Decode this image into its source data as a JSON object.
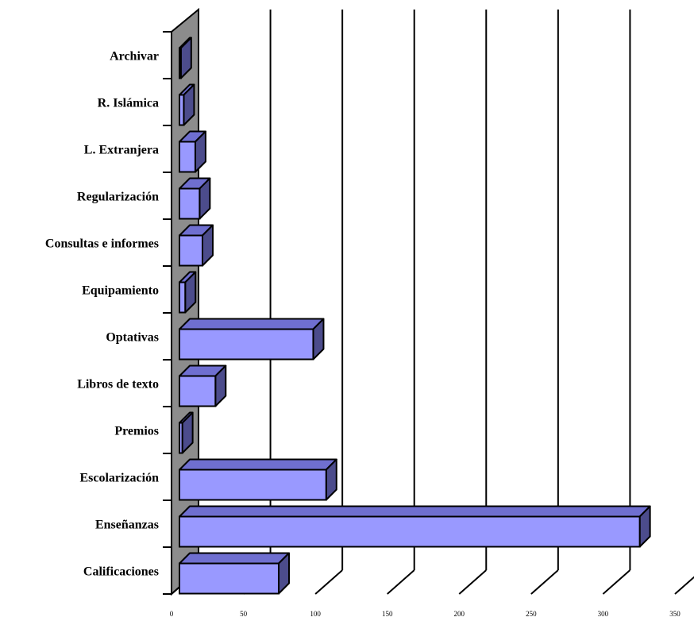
{
  "chart_data": {
    "type": "bar",
    "orientation": "horizontal",
    "style": "3d",
    "categories": [
      "Archivar",
      "R. Islámica",
      "L. Extranjera",
      "Regularización",
      "Consultas e informes",
      "Equipamiento",
      "Optativas",
      "Libros de texto",
      "Premios",
      "Escolarización",
      "Enseñanzas",
      "Calificaciones"
    ],
    "values": [
      1,
      3,
      11,
      14,
      16,
      4,
      93,
      25,
      2,
      102,
      320,
      69
    ],
    "x_ticks": [
      "0",
      "50",
      "100",
      "150",
      "200",
      "250",
      "300",
      "350"
    ],
    "xlim": [
      0,
      350
    ],
    "grid": true,
    "legend": "none",
    "colors": {
      "bar_front": "#9999ff",
      "bar_top": "#6f6fd0",
      "bar_side": "#4c4c8c",
      "wall": "#8c8c8c",
      "line": "#000000"
    }
  }
}
